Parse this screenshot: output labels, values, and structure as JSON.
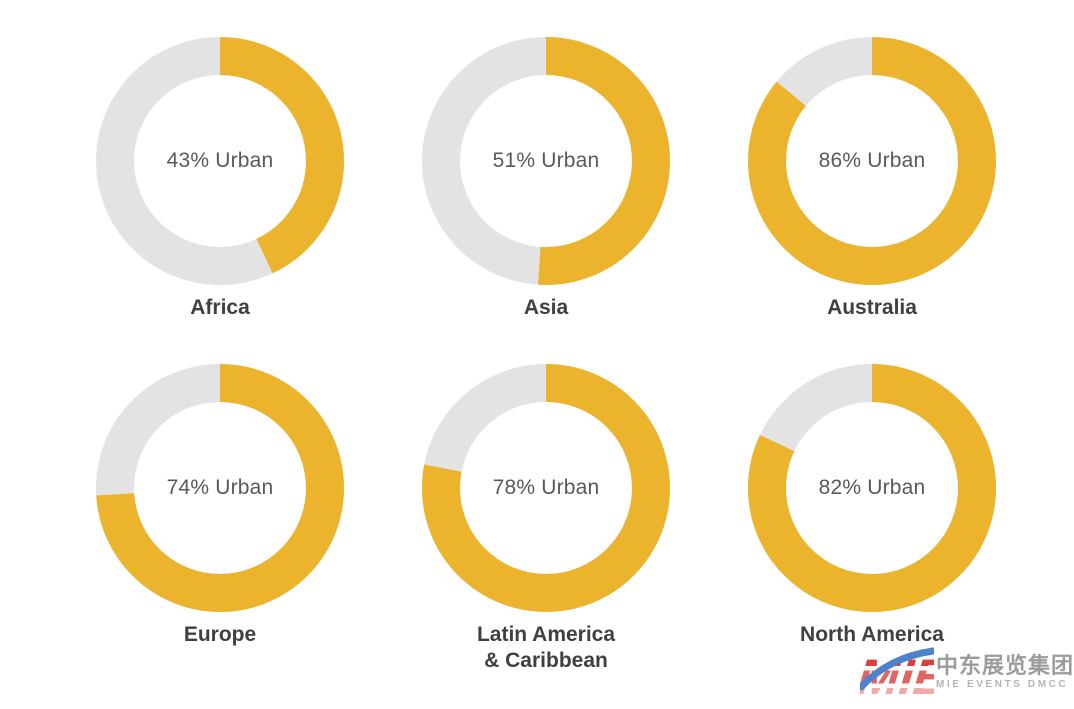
{
  "chart_data": {
    "type": "pie",
    "variant": "donut",
    "title": "",
    "legend": "none",
    "value_meaning": "Percent urban population per region",
    "regions": [
      {
        "label": "Africa",
        "value": 43,
        "center_text": "43% Urban"
      },
      {
        "label": "Asia",
        "value": 51,
        "center_text": "51% Urban"
      },
      {
        "label": "Australia",
        "value": 86,
        "center_text": "86% Urban"
      },
      {
        "label": "Europe",
        "value": 74,
        "center_text": "74% Urban"
      },
      {
        "label": "Latin America & Caribbean",
        "label_lines": [
          "Latin America",
          "& Caribbean"
        ],
        "value": 78,
        "center_text": "78% Urban"
      },
      {
        "label": "North America",
        "value": 82,
        "center_text": "82% Urban"
      }
    ],
    "colors": {
      "urban_arc": "#ECB32C",
      "remainder_arc": "#E3E3E3",
      "center_text": "#595959",
      "region_label": "#404040"
    },
    "arc_start": "top",
    "arc_direction": "clockwise"
  },
  "watermark": {
    "logo_text": "MIE",
    "cn_text": "中东展览集团",
    "sub_text": "MIE  EVENTS  DMCC",
    "colors": {
      "red": "#D9403C",
      "mid_red": "#E06663",
      "pink": "#EFA9A6",
      "blue": "#4E82CC",
      "cn_gray": "#9B9B9B",
      "sub_gray": "#B5B5B5"
    }
  }
}
